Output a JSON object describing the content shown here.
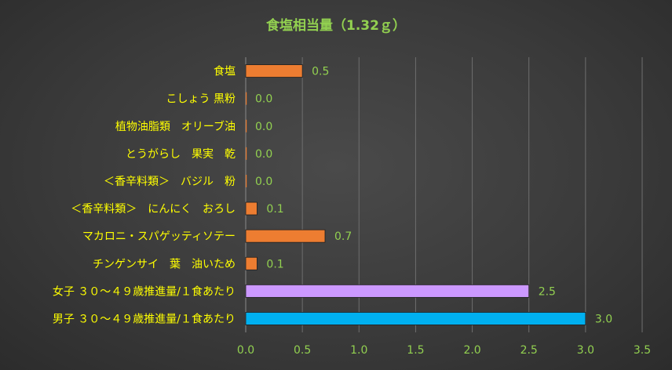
{
  "chart_data": {
    "type": "bar",
    "orientation": "horizontal",
    "title": "食塩相当量（1.32ｇ）",
    "categories": [
      "食塩",
      "こしょう 黒粉",
      "植物油脂類　オリーブ油",
      "とうがらし　果実　乾",
      "＜香辛料類＞　バジル　粉",
      "＜香辛料類＞　にんにく　おろし",
      "マカロニ・スパゲッティソテー",
      "チンゲンサイ　葉　油いため",
      "女子 ３０～４９歳推進量/１食あたり",
      "男子 ３０～４９歳推進量/１食あたり"
    ],
    "values": [
      0.5,
      0.0,
      0.0,
      0.0,
      0.0,
      0.1,
      0.7,
      0.1,
      2.5,
      3.0
    ],
    "value_labels": [
      "0.5",
      "0.0",
      "0.0",
      "0.0",
      "0.0",
      "0.1",
      "0.7",
      "0.1",
      "2.5",
      "3.0"
    ],
    "bar_colors": [
      "#ed7d31",
      "#ed7d31",
      "#ed7d31",
      "#ed7d31",
      "#ed7d31",
      "#ed7d31",
      "#ed7d31",
      "#ed7d31",
      "#cc99ff",
      "#00b0f0"
    ],
    "xlim": [
      0,
      3.5
    ],
    "xticks": [
      "0.0",
      "0.5",
      "1.0",
      "1.5",
      "2.0",
      "2.5",
      "3.0",
      "3.5"
    ],
    "grid": true,
    "legend": "none",
    "colors": {
      "title": "#92d050",
      "category_labels": "#ffff00",
      "data_labels": "#92d050",
      "tick_labels": "#92d050",
      "gridlines": "#6e6e6e"
    }
  }
}
